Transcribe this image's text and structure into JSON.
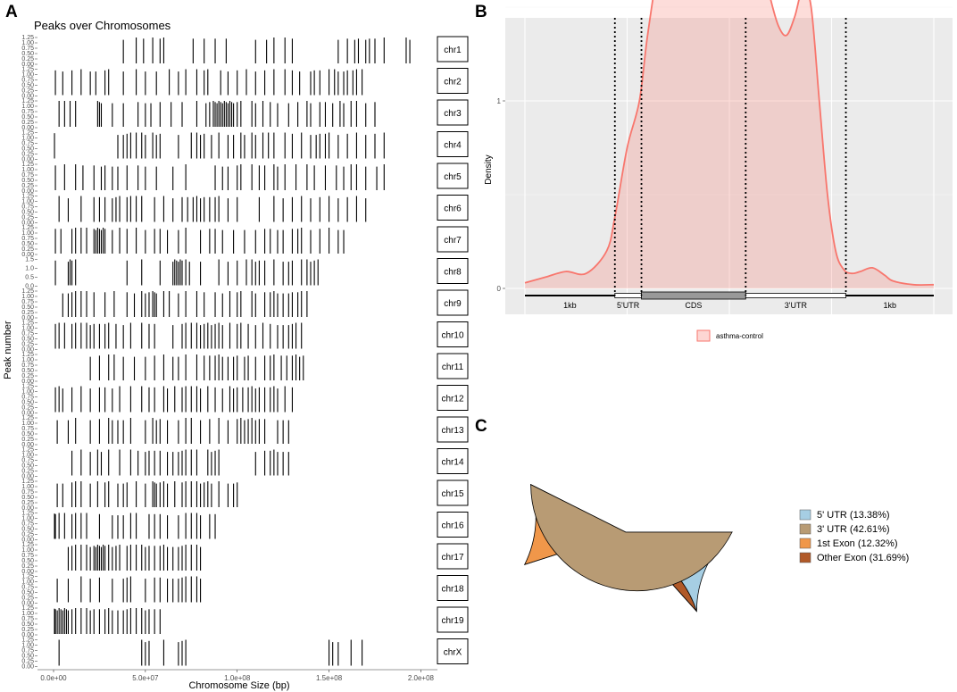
{
  "panels": {
    "a": "A",
    "b": "B",
    "c": "C"
  },
  "chart_data": [
    {
      "type": "bar",
      "panel": "A",
      "title": "Peaks over Chromosomes",
      "xlabel": "Chromosome Size (bp)",
      "ylabel": "Peak number",
      "xlim": [
        0,
        210000000
      ],
      "x_ticks": [
        0,
        50000000,
        100000000,
        150000000,
        200000000
      ],
      "x_tick_labels": [
        "0.0e+00",
        "5.0e+07",
        "1.0e+08",
        "1.5e+08",
        "2.0e+08"
      ],
      "y_tick_labels_default": [
        "1.25",
        "1.00",
        "0.75",
        "0.50",
        "0.25",
        "0.00"
      ],
      "y_tick_labels_chr8": [
        "1.5",
        "1.0",
        "0.5",
        "0.0"
      ],
      "peak_height": 1,
      "chromosomes": [
        {
          "name": "chr1",
          "peaks_mb": [
            38,
            45,
            49,
            54,
            58,
            60,
            76,
            82,
            88,
            94,
            110,
            116,
            120,
            126,
            130,
            155,
            160,
            164,
            166,
            170,
            172,
            175,
            180,
            192,
            194
          ]
        },
        {
          "name": "chr2",
          "peaks_mb": [
            1,
            5,
            10,
            15,
            20,
            23,
            28,
            30,
            38,
            45,
            50,
            56,
            63,
            68,
            72,
            78,
            82,
            84,
            91,
            95,
            100,
            105,
            110,
            115,
            120,
            126,
            130,
            134,
            140,
            142,
            145,
            150,
            153,
            155,
            158,
            160,
            163,
            165,
            168
          ]
        },
        {
          "name": "chr3",
          "peaks_mb": [
            3,
            6,
            9,
            12,
            24,
            25,
            26,
            32,
            38,
            46,
            50,
            53,
            58,
            64,
            70,
            78,
            83,
            85,
            87,
            88,
            89,
            90,
            91,
            92,
            93,
            94,
            95,
            96,
            97,
            98,
            100,
            102,
            108,
            110,
            114,
            118,
            122,
            128,
            133,
            138,
            140,
            145,
            148,
            152,
            156,
            158,
            162,
            165,
            170,
            175
          ]
        },
        {
          "name": "chr4",
          "peaks_mb": [
            0.5,
            35,
            38,
            40,
            42,
            45,
            48,
            50,
            54,
            56,
            58,
            68,
            75,
            78,
            80,
            82,
            86,
            90,
            95,
            98,
            102,
            104,
            108,
            110,
            114,
            117,
            120,
            126,
            130,
            135,
            140,
            143,
            145,
            148,
            150,
            155,
            160,
            165,
            170,
            175,
            180
          ]
        },
        {
          "name": "chr5",
          "peaks_mb": [
            1,
            6,
            12,
            16,
            22,
            26,
            28,
            32,
            35,
            40,
            46,
            50,
            56,
            65,
            72,
            88,
            92,
            95,
            100,
            102,
            108,
            112,
            115,
            120,
            122,
            126,
            132,
            138,
            142,
            148,
            154,
            158,
            162,
            165,
            170,
            176,
            180
          ]
        },
        {
          "name": "chr6",
          "peaks_mb": [
            3,
            8,
            15,
            22,
            25,
            28,
            32,
            34,
            36,
            40,
            42,
            45,
            48,
            55,
            60,
            65,
            70,
            73,
            76,
            78,
            80,
            82,
            85,
            88,
            90,
            95,
            100,
            112,
            120,
            125,
            130,
            135,
            140,
            145,
            150,
            155,
            160,
            165,
            170
          ]
        },
        {
          "name": "chr7",
          "peaks_mb": [
            1,
            4,
            10,
            12,
            15,
            18,
            22,
            23,
            24,
            25,
            26,
            27,
            28,
            32,
            36,
            40,
            45,
            50,
            55,
            58,
            62,
            68,
            72,
            80,
            85,
            88,
            92,
            98,
            104,
            110,
            115,
            118,
            122,
            125,
            130,
            133,
            135,
            140,
            145,
            150,
            155,
            158
          ]
        },
        {
          "name": "chr8",
          "peaks_mb": [
            1,
            8,
            9,
            10,
            12,
            40,
            48,
            58,
            65,
            66,
            67,
            68,
            69,
            70,
            72,
            74,
            80,
            90,
            95,
            100,
            105,
            108,
            110,
            112,
            115,
            120,
            125,
            128,
            130,
            135,
            138,
            140,
            142,
            144
          ]
        },
        {
          "name": "chr9",
          "peaks_mb": [
            5,
            8,
            10,
            12,
            15,
            18,
            22,
            28,
            33,
            40,
            44,
            48,
            50,
            52,
            54,
            55,
            56,
            60,
            63,
            68,
            72,
            78,
            82,
            88,
            92,
            96,
            100,
            102,
            108,
            110,
            115,
            118,
            120,
            122,
            125,
            128,
            130,
            133,
            135,
            138
          ]
        },
        {
          "name": "chr10",
          "peaks_mb": [
            1,
            3,
            6,
            10,
            12,
            15,
            18,
            20,
            22,
            25,
            28,
            30,
            34,
            38,
            42,
            48,
            52,
            55,
            65,
            70,
            72,
            75,
            78,
            80,
            82,
            84,
            86,
            88,
            90,
            92,
            96,
            100,
            102,
            106,
            110,
            114,
            118,
            122,
            125,
            128,
            130,
            132,
            135
          ]
        },
        {
          "name": "chr11",
          "peaks_mb": [
            20,
            25,
            30,
            33,
            38,
            44,
            50,
            55,
            60,
            65,
            68,
            72,
            78,
            82,
            85,
            88,
            90,
            92,
            95,
            98,
            100,
            104,
            106,
            110,
            115,
            118,
            120,
            124,
            127,
            130,
            132,
            134,
            136
          ]
        },
        {
          "name": "chr12",
          "peaks_mb": [
            1,
            3,
            5,
            10,
            15,
            20,
            25,
            28,
            32,
            36,
            42,
            48,
            52,
            55,
            60,
            62,
            66,
            70,
            72,
            75,
            78,
            80,
            84,
            88,
            92,
            96,
            98,
            100,
            103,
            106,
            108,
            110,
            112,
            115,
            118,
            120,
            122,
            126,
            130
          ]
        },
        {
          "name": "chr13",
          "peaks_mb": [
            2,
            8,
            12,
            20,
            25,
            30,
            32,
            35,
            38,
            42,
            50,
            54,
            56,
            58,
            62,
            68,
            72,
            75,
            80,
            85,
            90,
            95,
            100,
            102,
            104,
            106,
            108,
            110,
            112,
            115,
            122,
            125,
            128
          ]
        },
        {
          "name": "chr14",
          "peaks_mb": [
            10,
            15,
            20,
            24,
            26,
            30,
            36,
            42,
            46,
            50,
            52,
            55,
            58,
            62,
            65,
            68,
            70,
            72,
            75,
            78,
            84,
            86,
            88,
            90,
            110,
            115,
            118,
            120,
            122,
            125,
            128
          ]
        },
        {
          "name": "chr15",
          "peaks_mb": [
            2,
            5,
            10,
            12,
            15,
            20,
            24,
            28,
            30,
            35,
            38,
            40,
            45,
            50,
            54,
            55,
            56,
            58,
            60,
            62,
            66,
            70,
            72,
            75,
            78,
            80,
            82,
            84,
            86,
            90,
            95,
            98,
            100
          ]
        },
        {
          "name": "chr16",
          "peaks_mb": [
            0.5,
            1,
            3,
            6,
            10,
            12,
            15,
            18,
            25,
            32,
            35,
            38,
            42,
            45,
            52,
            55,
            58,
            62,
            68,
            72,
            75,
            78,
            80,
            85,
            88
          ]
        },
        {
          "name": "chr17",
          "peaks_mb": [
            8,
            10,
            12,
            15,
            18,
            20,
            22,
            23,
            24,
            25,
            26,
            27,
            28,
            30,
            32,
            34,
            36,
            40,
            42,
            45,
            48,
            50,
            52,
            55,
            58,
            60,
            62,
            65,
            68,
            70,
            72,
            75,
            78,
            80
          ]
        },
        {
          "name": "chr18",
          "peaks_mb": [
            2,
            8,
            15,
            20,
            25,
            32,
            38,
            40,
            42,
            50,
            55,
            58,
            62,
            65,
            68,
            70,
            72,
            75,
            78,
            80
          ]
        },
        {
          "name": "chr19",
          "peaks_mb": [
            0.5,
            1,
            2,
            3,
            4,
            5,
            6,
            7,
            8,
            10,
            12,
            15,
            18,
            20,
            22,
            25,
            28,
            30,
            32,
            35,
            38,
            40,
            42,
            45,
            48,
            50,
            52,
            55,
            58
          ]
        },
        {
          "name": "chrX",
          "peaks_mb": [
            3,
            48,
            50,
            52,
            60,
            68,
            70,
            72,
            150,
            152,
            155,
            162,
            168
          ]
        }
      ]
    },
    {
      "type": "area",
      "panel": "B",
      "ylabel": "Density",
      "y_ticks": [
        0,
        1,
        2
      ],
      "ylim": [
        0,
        2.85
      ],
      "series": [
        {
          "name": "asthma-control",
          "color": "#F8766D",
          "fill": "#F8766D",
          "x": [
            0,
            0.05,
            0.1,
            0.15,
            0.2,
            0.22,
            0.25,
            0.28,
            0.3,
            0.33,
            0.36,
            0.4,
            0.43,
            0.46,
            0.5,
            0.52,
            0.54,
            0.56,
            0.58,
            0.6,
            0.62,
            0.64,
            0.66,
            0.68,
            0.7,
            0.72,
            0.74,
            0.76,
            0.78,
            0.8,
            0.82,
            0.85,
            0.88,
            0.9,
            0.95,
            1.0
          ],
          "y": [
            0.03,
            0.06,
            0.09,
            0.08,
            0.2,
            0.38,
            0.75,
            1.0,
            1.35,
            1.75,
            1.85,
            2.05,
            2.08,
            2.25,
            2.72,
            2.7,
            2.45,
            2.1,
            1.75,
            1.55,
            1.4,
            1.35,
            1.45,
            1.6,
            1.5,
            1.0,
            0.5,
            0.2,
            0.1,
            0.08,
            0.09,
            0.11,
            0.07,
            0.04,
            0.02,
            0.02
          ]
        }
      ],
      "boundaries": [
        0.22,
        0.285,
        0.54,
        0.785
      ],
      "segments": [
        {
          "label": "1kb",
          "from": 0,
          "to": 0.22
        },
        {
          "label": "5'UTR",
          "from": 0.22,
          "to": 0.285
        },
        {
          "label": "CDS",
          "from": 0.285,
          "to": 0.54
        },
        {
          "label": "3'UTR",
          "from": 0.54,
          "to": 0.785
        },
        {
          "label": "1kb",
          "from": 0.785,
          "to": 1.0
        }
      ],
      "legend": "bottom",
      "grid": true
    },
    {
      "type": "pie",
      "panel": "C",
      "start_angle_deg": 90,
      "direction": "clockwise",
      "slices": [
        {
          "label": "5' UTR (13.38%)",
          "value": 13.38,
          "color": "#A6CEE3"
        },
        {
          "label": "Other Exon (31.69%)",
          "value": 31.69,
          "color": "#B15928"
        },
        {
          "label": "1st Exon (12.32%)",
          "value": 12.32,
          "color": "#F0974A"
        },
        {
          "label": "3' UTR (42.61%)",
          "value": 42.61,
          "color": "#B89B74"
        }
      ],
      "legend_order": [
        "5' UTR (13.38%)",
        "3' UTR (42.61%)",
        "1st Exon (12.32%)",
        "Other Exon (31.69%)"
      ],
      "legend": "right"
    }
  ]
}
